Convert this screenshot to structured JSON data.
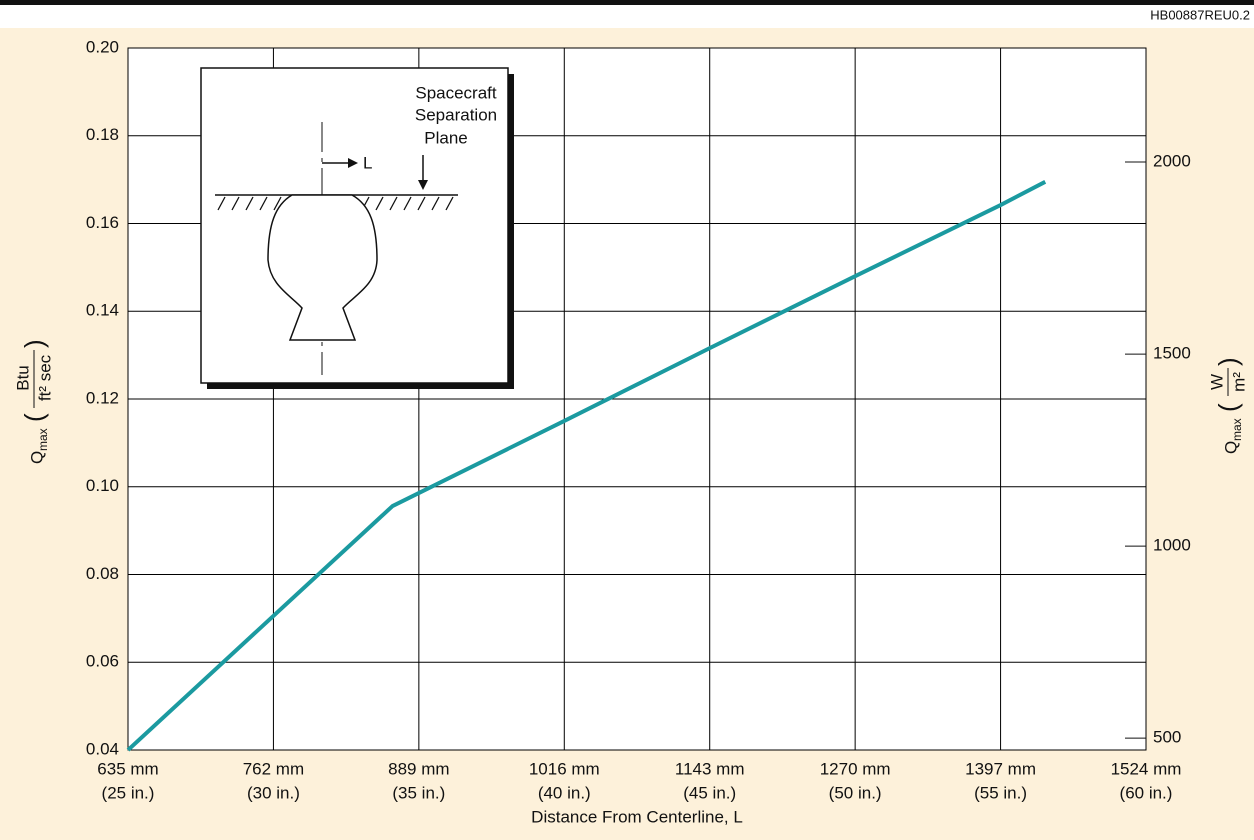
{
  "chart_data": {
    "type": "line",
    "code": "HB00887REU0.2",
    "x_label": "Distance From Centerline, L",
    "y_label": {
      "symbol": "Q",
      "subscript": "max",
      "open": "(",
      "numerator": "Btu",
      "denominator": "ft² sec",
      "close": ")"
    },
    "y2_label": {
      "symbol": "Q",
      "subscript": "max",
      "open": "(",
      "numerator": "W",
      "denominator": "m²",
      "close": ")"
    },
    "x": [
      635,
      866,
      1016,
      1143,
      1270,
      1397,
      1436
    ],
    "series": [
      {
        "color": "#1b9aa0",
        "values": [
          0.04,
          0.0956,
          0.115,
          0.1316,
          0.148,
          0.1642,
          0.1695
        ]
      }
    ],
    "xlim": [
      635,
      1524
    ],
    "xticks": [
      {
        "value": 635,
        "label": "635 mm"
      },
      {
        "value": 762,
        "label": "762 mm"
      },
      {
        "value": 889,
        "label": "889 mm"
      },
      {
        "value": 1016,
        "label": "1016 mm"
      },
      {
        "value": 1143,
        "label": "1143 mm"
      },
      {
        "value": 1270,
        "label": "1270 mm"
      },
      {
        "value": 1397,
        "label": "1397 mm"
      },
      {
        "value": 1524,
        "label": "1524 mm"
      }
    ],
    "xtick_sublabels": [
      "(25 in.)",
      "(30 in.)",
      "(35 in.)",
      "(40 in.)",
      "(45 in.)",
      "(50 in.)",
      "(55 in.)",
      "(60 in.)"
    ],
    "ylim": [
      0.04,
      0.2
    ],
    "yticks": [
      {
        "value": 0.04,
        "label": "0.04"
      },
      {
        "value": 0.06,
        "label": "0.06"
      },
      {
        "value": 0.08,
        "label": "0.08"
      },
      {
        "value": 0.1,
        "label": "0.10"
      },
      {
        "value": 0.12,
        "label": "0.12"
      },
      {
        "value": 0.14,
        "label": "0.14"
      },
      {
        "value": 0.16,
        "label": "0.16"
      },
      {
        "value": 0.18,
        "label": "0.18"
      },
      {
        "value": 0.2,
        "label": "0.20"
      }
    ],
    "y2lim": [
      469,
      2297
    ],
    "y2ticks": [
      500,
      1000,
      1500,
      2000
    ],
    "grid": true,
    "inset": {
      "separation_label": [
        "Spacecraft",
        "Separation",
        "Plane"
      ],
      "distance_label": "L"
    }
  }
}
